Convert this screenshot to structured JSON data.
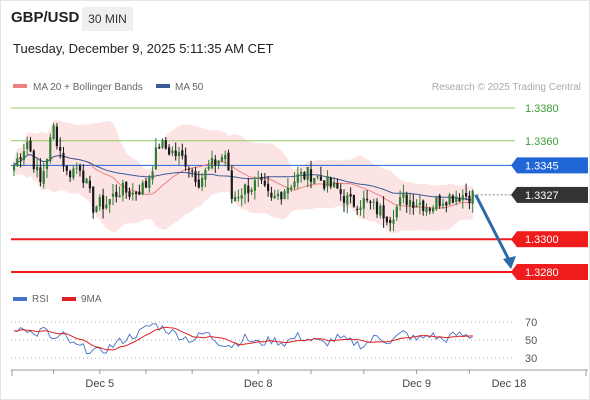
{
  "header": {
    "symbol": "GBP/USD",
    "timeframe": "30 MIN",
    "datetime": "Tuesday, December 9, 2025 5:11:35 AM CET"
  },
  "colors": {
    "bullish": "#2e7d32",
    "bearish": "#1a1a1a",
    "bollinger_fill": "#fde4e4",
    "ma20": "#f08080",
    "ma50": "#3a5a9a",
    "resistance": "#8fca6c",
    "pivot": "#2166d6",
    "support": "#ee1c1c",
    "price_tag": "#333333",
    "arrow": "#2c6aa8",
    "rsi": "#4472c4",
    "rsi_ma": "#e02020"
  },
  "legend": {
    "main": [
      {
        "label": "MA 20 + Bollinger Bands",
        "color": "#f08080"
      },
      {
        "label": "MA 50",
        "color": "#3a5a9a"
      }
    ],
    "rsi": [
      {
        "label": "RSI",
        "color": "#4472c4"
      },
      {
        "label": "9MA",
        "color": "#e02020"
      }
    ]
  },
  "watermark": "Research © 2025 Trading Central",
  "chart_data": {
    "type": "candlestick",
    "price_range": [
      1.327,
      1.339
    ],
    "levels": [
      {
        "value": 1.338,
        "label": "1.3380",
        "kind": "resistance"
      },
      {
        "value": 1.336,
        "label": "1.3360",
        "kind": "resistance"
      },
      {
        "value": 1.3345,
        "label": "1.3345",
        "kind": "pivot"
      },
      {
        "value": 1.3327,
        "label": "1.3327",
        "kind": "last"
      },
      {
        "value": 1.33,
        "label": "1.3300",
        "kind": "support"
      },
      {
        "value": 1.328,
        "label": "1.3280",
        "kind": "support"
      }
    ],
    "forecast": {
      "from": 1.3327,
      "to": 1.328
    },
    "candles_count": 140,
    "closes_anchor": [
      [
        0,
        1.3345
      ],
      [
        4,
        1.336
      ],
      [
        8,
        1.3334
      ],
      [
        12,
        1.3368
      ],
      [
        16,
        1.334
      ],
      [
        20,
        1.3345
      ],
      [
        24,
        1.332
      ],
      [
        28,
        1.3322
      ],
      [
        32,
        1.333
      ],
      [
        36,
        1.3328
      ],
      [
        40,
        1.3333
      ],
      [
        44,
        1.3358
      ],
      [
        48,
        1.3353
      ],
      [
        52,
        1.3348
      ],
      [
        56,
        1.3336
      ],
      [
        60,
        1.3345
      ],
      [
        64,
        1.3352
      ],
      [
        66,
        1.3325
      ],
      [
        70,
        1.3331
      ],
      [
        74,
        1.3334
      ],
      [
        78,
        1.3323
      ],
      [
        82,
        1.3331
      ],
      [
        86,
        1.3338
      ],
      [
        90,
        1.334
      ],
      [
        94,
        1.3335
      ],
      [
        98,
        1.333
      ],
      [
        102,
        1.3322
      ],
      [
        106,
        1.3323
      ],
      [
        110,
        1.3318
      ],
      [
        114,
        1.3314
      ],
      [
        118,
        1.3325
      ],
      [
        122,
        1.3323
      ],
      [
        126,
        1.332
      ],
      [
        130,
        1.3325
      ],
      [
        134,
        1.3327
      ],
      [
        139,
        1.3327
      ]
    ],
    "x_axis": {
      "ticks": [
        {
          "label": "Dec 5",
          "index": 26
        },
        {
          "label": "Dec 8",
          "index": 74
        },
        {
          "label": "Dec 9",
          "index": 122
        },
        {
          "label": "Dec 18",
          "index": 143
        }
      ]
    },
    "rsi": {
      "range": [
        20,
        80
      ],
      "levels": [
        70,
        50,
        30
      ],
      "anchors": [
        [
          0,
          60
        ],
        [
          3,
          66
        ],
        [
          6,
          55
        ],
        [
          9,
          62
        ],
        [
          12,
          50
        ],
        [
          15,
          55
        ],
        [
          18,
          44
        ],
        [
          22,
          40
        ],
        [
          26,
          36
        ],
        [
          30,
          44
        ],
        [
          34,
          52
        ],
        [
          38,
          58
        ],
        [
          42,
          68
        ],
        [
          46,
          62
        ],
        [
          50,
          55
        ],
        [
          54,
          50
        ],
        [
          58,
          58
        ],
        [
          62,
          48
        ],
        [
          66,
          44
        ],
        [
          70,
          52
        ],
        [
          74,
          46
        ],
        [
          78,
          50
        ],
        [
          82,
          47
        ],
        [
          86,
          54
        ],
        [
          90,
          50
        ],
        [
          94,
          46
        ],
        [
          98,
          52
        ],
        [
          102,
          48
        ],
        [
          106,
          44
        ],
        [
          110,
          54
        ],
        [
          114,
          48
        ],
        [
          118,
          58
        ],
        [
          122,
          50
        ],
        [
          126,
          56
        ],
        [
          130,
          50
        ],
        [
          134,
          56
        ],
        [
          139,
          54
        ]
      ]
    }
  }
}
